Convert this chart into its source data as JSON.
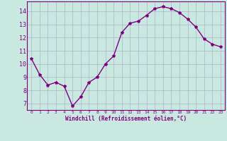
{
  "x": [
    0,
    1,
    2,
    3,
    4,
    5,
    6,
    7,
    8,
    9,
    10,
    11,
    12,
    13,
    14,
    15,
    16,
    17,
    18,
    19,
    20,
    21,
    22,
    23
  ],
  "y": [
    10.4,
    9.2,
    8.4,
    8.6,
    8.3,
    6.8,
    7.5,
    8.6,
    9.0,
    10.0,
    10.6,
    12.4,
    13.1,
    13.25,
    13.7,
    14.2,
    14.35,
    14.2,
    13.9,
    13.4,
    12.8,
    11.9,
    11.5,
    11.3
  ],
  "line_color": "#800080",
  "marker": "*",
  "bg_color": "#c8e8e0",
  "grid_color": "#b0b0cc",
  "xlabel": "Windchill (Refroidissement éolien,°C)",
  "xlabel_color": "#800080",
  "ylim": [
    6.5,
    14.75
  ],
  "xlim": [
    -0.5,
    23.5
  ],
  "yticks": [
    7,
    8,
    9,
    10,
    11,
    12,
    13,
    14
  ],
  "xticks": [
    0,
    1,
    2,
    3,
    4,
    5,
    6,
    7,
    8,
    9,
    10,
    11,
    12,
    13,
    14,
    15,
    16,
    17,
    18,
    19,
    20,
    21,
    22,
    23
  ],
  "tick_color": "#800080",
  "spine_color": "#800080",
  "font_family": "monospace",
  "marker_size": 3,
  "line_width": 1.0
}
